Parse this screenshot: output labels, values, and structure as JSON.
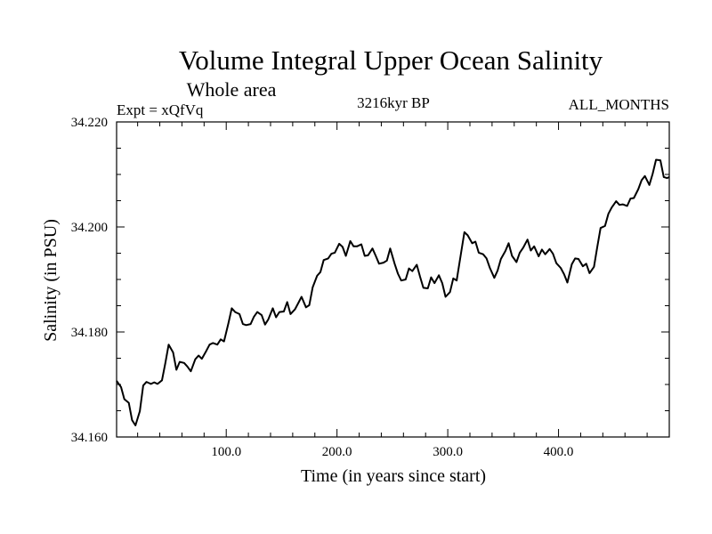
{
  "chart_data": {
    "type": "line",
    "title": "Volume Integral Upper Ocean Salinity",
    "subtitle": "Whole area",
    "experiment": "Expt = xQfVq",
    "period": "3216kyr BP",
    "months": "ALL_MONTHS",
    "xlabel": "Time (in years since start)",
    "ylabel": "Salinity (in PSU)",
    "xlim": [
      1,
      500
    ],
    "ylim": [
      34.16,
      34.22
    ],
    "x_ticks": [
      100,
      200,
      300,
      400
    ],
    "x_tick_labels": [
      "100.0",
      "200.0",
      "300.0",
      "400.0"
    ],
    "y_ticks": [
      34.16,
      34.18,
      34.2,
      34.22
    ],
    "y_tick_labels": [
      "34.160",
      "34.180",
      "34.200",
      "34.220"
    ],
    "grid": false,
    "series": [
      {
        "name": "Salinity",
        "x": [
          1,
          5,
          8,
          12,
          15,
          18,
          22,
          25,
          28,
          32,
          35,
          38,
          42,
          45,
          48,
          52,
          55,
          58,
          62,
          65,
          68,
          72,
          75,
          78,
          82,
          85,
          88,
          92,
          95,
          98,
          102,
          105,
          108,
          112,
          115,
          118,
          122,
          125,
          128,
          132,
          135,
          138,
          142,
          145,
          148,
          152,
          155,
          158,
          162,
          165,
          168,
          172,
          175,
          178,
          182,
          185,
          188,
          192,
          195,
          198,
          202,
          205,
          208,
          212,
          215,
          218,
          222,
          225,
          228,
          232,
          235,
          238,
          242,
          245,
          248,
          252,
          255,
          258,
          262,
          265,
          268,
          272,
          275,
          278,
          282,
          285,
          288,
          292,
          295,
          298,
          302,
          305,
          308,
          312,
          315,
          318,
          322,
          325,
          328,
          332,
          335,
          338,
          342,
          345,
          348,
          352,
          355,
          358,
          362,
          365,
          368,
          372,
          375,
          378,
          382,
          385,
          388,
          392,
          395,
          398,
          402,
          405,
          408,
          412,
          415,
          418,
          422,
          425,
          428,
          432,
          435,
          438,
          442,
          445,
          448,
          452,
          455,
          458,
          462,
          465,
          468,
          472,
          475,
          478,
          482,
          485,
          488,
          492,
          495,
          498,
          500
        ],
        "values": [
          34.1707,
          34.1695,
          34.1672,
          34.1665,
          34.1632,
          34.1622,
          34.1649,
          34.1698,
          34.1705,
          34.1701,
          34.1704,
          34.1701,
          34.1708,
          34.1741,
          34.1776,
          34.1761,
          34.1728,
          34.1743,
          34.1741,
          34.1734,
          34.1725,
          34.1748,
          34.1755,
          34.1749,
          34.1764,
          34.1776,
          34.1779,
          34.1776,
          34.1786,
          34.1782,
          34.1817,
          34.1845,
          34.1838,
          34.1834,
          34.1815,
          34.1813,
          34.1815,
          34.1829,
          34.1838,
          34.1832,
          34.1814,
          34.1824,
          34.1845,
          34.1828,
          34.1838,
          34.1839,
          34.1857,
          34.1834,
          34.1843,
          34.1855,
          34.1867,
          34.1847,
          34.1851,
          34.1885,
          34.1907,
          34.1914,
          34.1937,
          34.194,
          34.1949,
          34.1951,
          34.1968,
          34.1962,
          34.1945,
          34.1973,
          34.1963,
          34.1963,
          34.1967,
          34.1945,
          34.1946,
          34.1959,
          34.1945,
          34.193,
          34.1932,
          34.1936,
          34.1959,
          34.193,
          34.1911,
          34.1898,
          34.19,
          34.1921,
          34.1916,
          34.1928,
          34.1905,
          34.1884,
          34.1883,
          34.1904,
          34.1893,
          34.1908,
          34.1893,
          34.1867,
          34.1876,
          34.1902,
          34.1898,
          34.195,
          34.199,
          34.1984,
          34.1969,
          34.1972,
          34.1951,
          34.1948,
          34.194,
          34.1922,
          34.1903,
          34.1917,
          34.1939,
          34.1954,
          34.1969,
          34.1945,
          34.1933,
          34.1951,
          34.196,
          34.1976,
          34.1955,
          34.1963,
          34.1944,
          34.1957,
          34.1948,
          34.1958,
          34.1949,
          34.1931,
          34.1922,
          34.191,
          34.1894,
          34.1929,
          34.194,
          34.1939,
          34.1925,
          34.193,
          34.1912,
          34.1924,
          34.1962,
          34.1998,
          34.2002,
          34.2025,
          34.2037,
          34.2049,
          34.2042,
          34.2043,
          34.204,
          34.2054,
          34.2055,
          34.2072,
          34.2089,
          34.2097,
          34.208,
          34.2101,
          34.2128,
          34.2127,
          34.2095,
          34.2093,
          34.2095
        ]
      }
    ]
  }
}
